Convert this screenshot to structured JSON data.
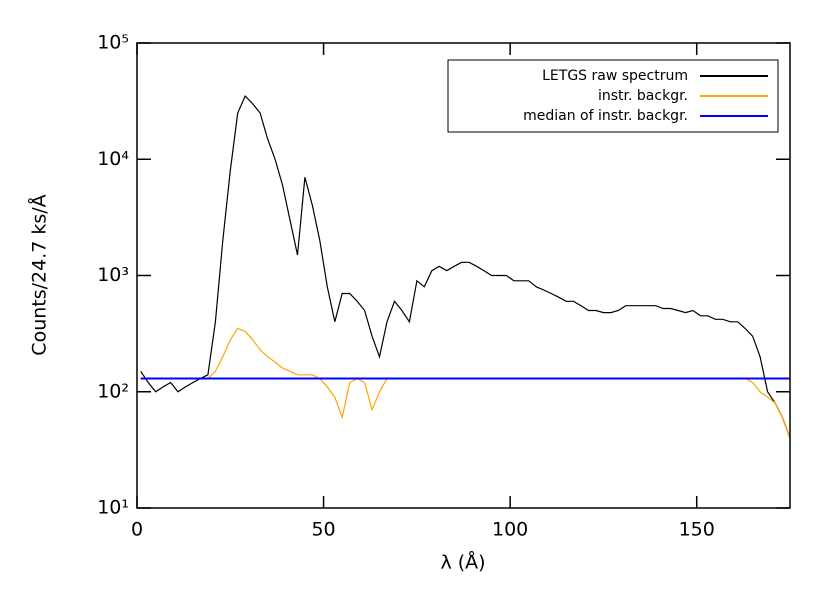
{
  "chart_data": {
    "type": "line",
    "xlabel": "λ (Å)",
    "ylabel": "Counts/24.7 ks/Å",
    "xlim": [
      0,
      175
    ],
    "ylim": [
      10,
      100000
    ],
    "yscale": "log",
    "xticks": [
      0,
      50,
      100,
      150
    ],
    "yticks": [
      {
        "value": 10,
        "label": "10¹"
      },
      {
        "value": 100,
        "label": "10²"
      },
      {
        "value": 1000,
        "label": "10³"
      },
      {
        "value": 10000,
        "label": "10⁴"
      },
      {
        "value": 100000,
        "label": "10⁵"
      }
    ],
    "legend": "upper right",
    "x": [
      1,
      3,
      5,
      7,
      9,
      11,
      13,
      15,
      17,
      19,
      21,
      23,
      25,
      27,
      29,
      31,
      33,
      35,
      37,
      39,
      41,
      43,
      45,
      47,
      49,
      51,
      53,
      55,
      57,
      59,
      61,
      63,
      65,
      67,
      69,
      71,
      73,
      75,
      77,
      79,
      81,
      83,
      85,
      87,
      89,
      91,
      93,
      95,
      97,
      99,
      101,
      103,
      105,
      107,
      109,
      111,
      113,
      115,
      117,
      119,
      121,
      123,
      125,
      127,
      129,
      131,
      133,
      135,
      137,
      139,
      141,
      143,
      145,
      147,
      149,
      151,
      153,
      155,
      157,
      159,
      161,
      163,
      165,
      167,
      169,
      171,
      173,
      175
    ],
    "series": [
      {
        "name": "LETGS raw spectrum",
        "color": "#000000",
        "values": [
          150,
          120,
          100,
          110,
          120,
          100,
          110,
          120,
          130,
          140,
          400,
          2000,
          8000,
          25000,
          35000,
          30000,
          25000,
          15000,
          10000,
          6000,
          3000,
          1500,
          7000,
          4000,
          2000,
          800,
          400,
          700,
          700,
          600,
          500,
          300,
          200,
          400,
          600,
          500,
          400,
          900,
          800,
          1100,
          1200,
          1100,
          1200,
          1300,
          1300,
          1200,
          1100,
          1000,
          1000,
          1000,
          900,
          900,
          900,
          800,
          750,
          700,
          650,
          600,
          600,
          550,
          500,
          500,
          480,
          480,
          500,
          550,
          550,
          550,
          550,
          550,
          520,
          520,
          500,
          480,
          500,
          450,
          450,
          420,
          420,
          400,
          400,
          350,
          300,
          200,
          100,
          80,
          60,
          40
        ]
      },
      {
        "name": "instr. backgr.",
        "color": "#ffa500",
        "values": [
          130,
          130,
          130,
          130,
          130,
          130,
          130,
          130,
          130,
          130,
          150,
          200,
          280,
          350,
          330,
          280,
          230,
          200,
          180,
          160,
          150,
          140,
          140,
          140,
          130,
          110,
          90,
          60,
          120,
          130,
          120,
          70,
          100,
          130,
          130,
          130,
          130,
          130,
          130,
          130,
          130,
          130,
          130,
          130,
          130,
          130,
          130,
          130,
          130,
          130,
          130,
          130,
          130,
          130,
          130,
          130,
          130,
          130,
          130,
          130,
          130,
          130,
          130,
          130,
          130,
          130,
          130,
          130,
          130,
          130,
          130,
          130,
          130,
          130,
          130,
          130,
          130,
          130,
          130,
          130,
          130,
          130,
          120,
          100,
          90,
          80,
          60,
          40
        ]
      },
      {
        "name": "median of instr. backgr.",
        "color": "#0000ff",
        "values": [
          130,
          130,
          130,
          130,
          130,
          130,
          130,
          130,
          130,
          130,
          130,
          130,
          130,
          130,
          130,
          130,
          130,
          130,
          130,
          130,
          130,
          130,
          130,
          130,
          130,
          130,
          130,
          130,
          130,
          130,
          130,
          130,
          130,
          130,
          130,
          130,
          130,
          130,
          130,
          130,
          130,
          130,
          130,
          130,
          130,
          130,
          130,
          130,
          130,
          130,
          130,
          130,
          130,
          130,
          130,
          130,
          130,
          130,
          130,
          130,
          130,
          130,
          130,
          130,
          130,
          130,
          130,
          130,
          130,
          130,
          130,
          130,
          130,
          130,
          130,
          130,
          130,
          130,
          130,
          130,
          130,
          130,
          130,
          130,
          130,
          130,
          130,
          130
        ]
      }
    ]
  }
}
